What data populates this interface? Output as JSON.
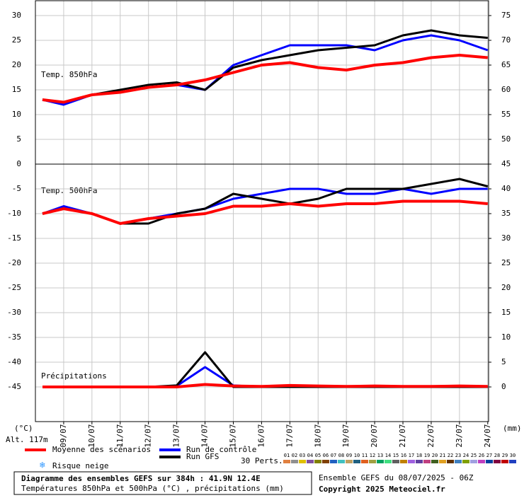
{
  "chart_data": [
    {
      "type": "line",
      "label": "Temp. 850hPa",
      "unit": "(°C)",
      "x": [
        0.25,
        1,
        2,
        3,
        4,
        5,
        6,
        7,
        8,
        9,
        10,
        11,
        12,
        13,
        14,
        15,
        16
      ],
      "xlim": [
        0,
        16.03
      ],
      "ylim": [
        0,
        33
      ],
      "yticks": [
        0,
        5,
        10,
        15,
        20,
        25,
        30
      ],
      "y2lim": [
        45,
        78
      ],
      "y2ticks": [
        50,
        55,
        60,
        65,
        70,
        75
      ],
      "grid": true,
      "series": [
        {
          "name": "Run de contrôle",
          "color": "#0000ff",
          "values": [
            13,
            12,
            14,
            14.5,
            15.5,
            16,
            15,
            20,
            22,
            24,
            24,
            24,
            23,
            25,
            26,
            25,
            23
          ]
        },
        {
          "name": "Run GFS",
          "color": "#000000",
          "values": [
            13,
            12.5,
            14,
            15,
            16,
            16.5,
            15,
            19.5,
            21,
            22,
            23,
            23.5,
            24,
            26,
            27,
            26,
            25.5
          ]
        },
        {
          "name": "Moyenne des scénarios",
          "color": "#ff0000",
          "values": [
            13,
            12.5,
            14,
            14.5,
            15.5,
            16,
            17,
            18.5,
            20,
            20.5,
            19.5,
            19,
            20,
            20.5,
            21.5,
            22,
            21.5
          ]
        }
      ]
    },
    {
      "type": "line",
      "label": "Temp. 500hPa",
      "x": [
        0.25,
        1,
        2,
        3,
        4,
        5,
        6,
        7,
        8,
        9,
        10,
        11,
        12,
        13,
        14,
        15,
        16
      ],
      "xlim": [
        0,
        16.03
      ],
      "ylim": [
        -52,
        0
      ],
      "yticks": [
        -45,
        -40,
        -35,
        -30,
        -25,
        -20,
        -15,
        -10,
        -5
      ],
      "grid": true,
      "series": [
        {
          "name": "Run de contrôle",
          "color": "#0000ff",
          "values": [
            -10,
            -8.5,
            -10,
            -12,
            -11,
            -10,
            -9,
            -7,
            -6,
            -5,
            -5,
            -6,
            -6,
            -5,
            -6,
            -5,
            -5
          ]
        },
        {
          "name": "Run GFS",
          "color": "#000000",
          "values": [
            -10,
            -9,
            -10,
            -12,
            -12,
            -10,
            -9,
            -6,
            -7,
            -8,
            -7,
            -5,
            -5,
            -5,
            -4,
            -3,
            -4.5
          ]
        },
        {
          "name": "Moyenne des scénarios",
          "color": "#ff0000",
          "values": [
            -10,
            -9,
            -10,
            -12,
            -11,
            -10.5,
            -10,
            -8.5,
            -8.5,
            -8,
            -8.5,
            -8,
            -8,
            -7.5,
            -7.5,
            -7.5,
            -8
          ]
        }
      ]
    },
    {
      "type": "line",
      "label": "Précipitations",
      "unit": "(mm)",
      "x": [
        0.25,
        1,
        2,
        3,
        4,
        5,
        6,
        7,
        8,
        9,
        10,
        11,
        12,
        13,
        14,
        15,
        16
      ],
      "xlim": [
        0,
        16.03
      ],
      "y2lim": [
        -7,
        45
      ],
      "y2ticks": [
        0,
        5,
        10,
        15,
        20,
        25,
        30,
        35,
        40,
        45
      ],
      "xticks": [
        {
          "value": 1,
          "label": "09/07"
        },
        {
          "value": 2,
          "label": "10/07"
        },
        {
          "value": 3,
          "label": "11/07"
        },
        {
          "value": 4,
          "label": "12/07"
        },
        {
          "value": 5,
          "label": "13/07"
        },
        {
          "value": 6,
          "label": "14/07"
        },
        {
          "value": 7,
          "label": "15/07"
        },
        {
          "value": 8,
          "label": "16/07"
        },
        {
          "value": 9,
          "label": "17/07"
        },
        {
          "value": 10,
          "label": "18/07"
        },
        {
          "value": 11,
          "label": "19/07"
        },
        {
          "value": 12,
          "label": "20/07"
        },
        {
          "value": 13,
          "label": "21/07"
        },
        {
          "value": 14,
          "label": "22/07"
        },
        {
          "value": 15,
          "label": "23/07"
        },
        {
          "value": 16,
          "label": "24/07"
        }
      ],
      "series": [
        {
          "name": "Run de contrôle",
          "color": "#0000ff",
          "axis": "y2",
          "values": [
            0,
            0,
            0,
            0,
            0,
            0.2,
            4,
            0.3,
            0,
            0,
            0,
            0,
            0,
            0,
            0,
            0,
            0
          ]
        },
        {
          "name": "Run GFS",
          "color": "#000000",
          "axis": "y2",
          "values": [
            0,
            0,
            0,
            0,
            0,
            0.3,
            7,
            0,
            0,
            0,
            0,
            0,
            0,
            0,
            0,
            0,
            0
          ]
        },
        {
          "name": "Moyenne des scénarios",
          "color": "#ff0000",
          "axis": "y2",
          "values": [
            0,
            0,
            0,
            0,
            0,
            0,
            0.5,
            0.2,
            0.1,
            0.3,
            0.2,
            0.1,
            0.2,
            0.1,
            0.1,
            0.2,
            0.1
          ]
        }
      ]
    }
  ],
  "altitude": "Alt. 117m",
  "snow_risk": "Risque neige",
  "perturbations": {
    "label": "30 Perts.",
    "members": [
      {
        "name": "01",
        "color": "#e08040"
      },
      {
        "name": "02",
        "color": "#909090"
      },
      {
        "name": "03",
        "color": "#e0c000"
      },
      {
        "name": "04",
        "color": "#8050a0"
      },
      {
        "name": "05",
        "color": "#808000"
      },
      {
        "name": "06",
        "color": "#804000"
      },
      {
        "name": "07",
        "color": "#2060c0"
      },
      {
        "name": "08",
        "color": "#40c0c0"
      },
      {
        "name": "09",
        "color": "#c0a060"
      },
      {
        "name": "10",
        "color": "#206080"
      },
      {
        "name": "11",
        "color": "#e06020"
      },
      {
        "name": "12",
        "color": "#a0a040"
      },
      {
        "name": "13",
        "color": "#00a060"
      },
      {
        "name": "14",
        "color": "#40e080"
      },
      {
        "name": "15",
        "color": "#606060"
      },
      {
        "name": "16",
        "color": "#c08000"
      },
      {
        "name": "17",
        "color": "#a060e0"
      },
      {
        "name": "18",
        "color": "#6040a0"
      },
      {
        "name": "19",
        "color": "#c04080"
      },
      {
        "name": "20",
        "color": "#406020"
      },
      {
        "name": "21",
        "color": "#e0a020"
      },
      {
        "name": "22",
        "color": "#603000"
      },
      {
        "name": "23",
        "color": "#4080c0"
      },
      {
        "name": "24",
        "color": "#80a000"
      },
      {
        "name": "25",
        "color": "#a0a0e0"
      },
      {
        "name": "26",
        "color": "#c040c0"
      },
      {
        "name": "27",
        "color": "#0040a0"
      },
      {
        "name": "28",
        "color": "#800040"
      },
      {
        "name": "29",
        "color": "#c00000"
      },
      {
        "name": "30",
        "color": "#2040c0"
      }
    ]
  },
  "footer": {
    "title": "Diagramme des ensembles GEFS sur 384h : 41.9N 12.4E",
    "subtitle": "Températures 850hPa et 500hPa (°C) , précipitations (mm)",
    "run": "Ensemble GEFS du 08/07/2025 - 06Z",
    "copyright": "Copyright 2025 Meteociel.fr"
  }
}
